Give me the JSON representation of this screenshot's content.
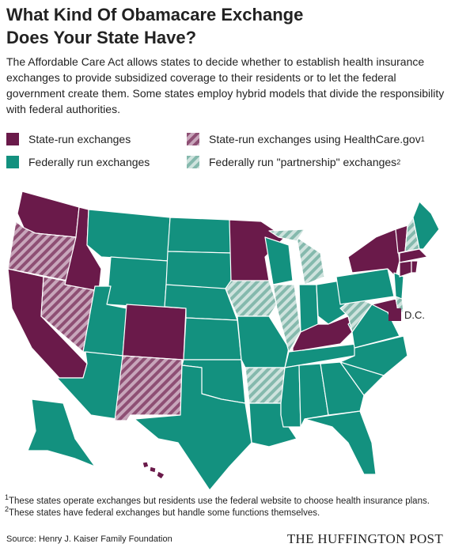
{
  "header": {
    "title_lines": [
      "What Kind Of Obamacare Exchange",
      "Does Your State Have?"
    ],
    "description": "The Affordable Care Act allows states to decide whether to establish health insurance exchanges to provide subsidized coverage to their residents or to let the federal government create them. Some states employ hybrid models that divide the responsibility with federal authorities."
  },
  "legend": [
    {
      "label": "State-run exchanges"
    },
    {
      "label": "State-run exchanges using HealthCare.gov",
      "note": "1"
    },
    {
      "label": "Federally run exchanges"
    },
    {
      "label": "Federally run \"partnership\" exchanges",
      "note": "2"
    }
  ],
  "map": {
    "dc_label": "D.C."
  },
  "footnotes": [
    {
      "note": "1",
      "text": "These states operate exchanges but residents use the federal website to choose health insurance plans."
    },
    {
      "note": "2",
      "text": "These states have federal exchanges but handle some functions themselves."
    }
  ],
  "footer": {
    "source": "Source: Henry J. Kaiser Family Foundation",
    "brand": "THE HUFFINGTON POST"
  }
}
